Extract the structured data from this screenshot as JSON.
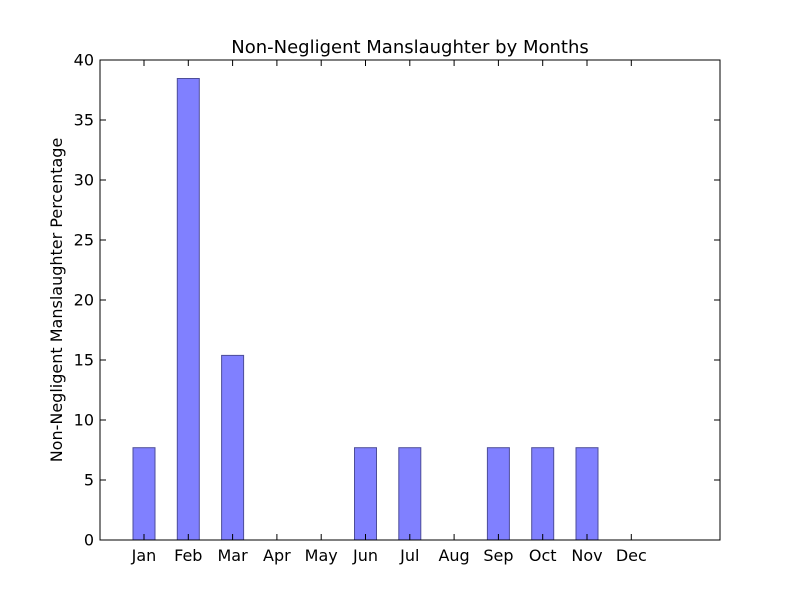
{
  "chart_data": {
    "type": "bar",
    "title": "Non-Negligent Manslaughter by Months",
    "xlabel": "",
    "ylabel": "Non-Negligent Manslaughter Percentage",
    "categories": [
      "Jan",
      "Feb",
      "Mar",
      "Apr",
      "May",
      "Jun",
      "Jul",
      "Aug",
      "Sep",
      "Oct",
      "Nov",
      "Dec"
    ],
    "values": [
      7.69,
      38.46,
      15.38,
      0,
      0,
      7.69,
      7.69,
      0,
      7.69,
      7.69,
      7.69,
      0
    ],
    "ylim": [
      0,
      40
    ],
    "yticks": [
      "0",
      "5",
      "10",
      "15",
      "20",
      "25",
      "30",
      "35",
      "40"
    ],
    "grid": false,
    "colors": {
      "bar_fill": "#8080ff",
      "bar_edge": "#4d4d99",
      "axis": "#000000"
    }
  }
}
